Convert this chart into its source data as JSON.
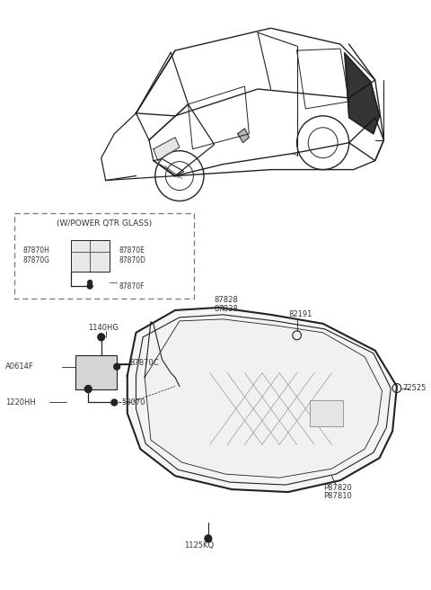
{
  "bg_color": "#ffffff",
  "line_color": "#222222",
  "label_color": "#333333",
  "fig_width": 4.8,
  "fig_height": 6.56,
  "dpi": 100,
  "labels": {
    "power_qtr_header": "(W/POWER QTR GLASS)",
    "87870H": "87870H",
    "87870G": "87870G",
    "87870E": "87870E",
    "87870D": "87870D",
    "87870F": "87870F",
    "1140HG": "1140HG",
    "A0614F": "A0614F",
    "87870C": "87870C",
    "1220HH": "1220HH",
    "58070": "58070",
    "87828": "87828",
    "87838": "87838",
    "82191": "82191",
    "72525": "72525",
    "P87820": "P87820",
    "P87810": "P87810",
    "1125KQ": "1125KQ"
  }
}
